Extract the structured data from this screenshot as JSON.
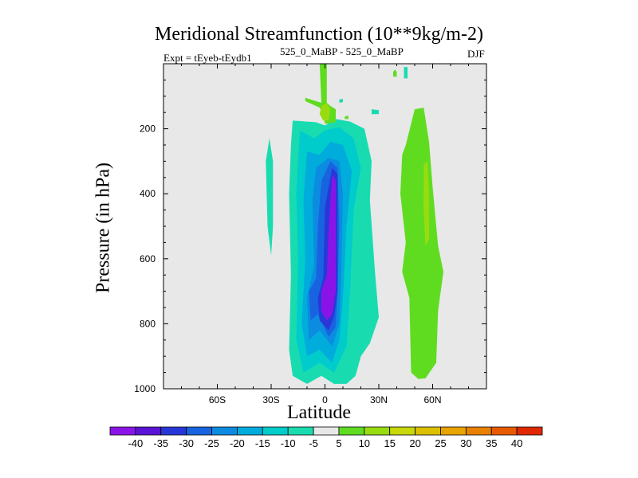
{
  "title": "Meridional Streamfunction (10**9kg/m-2)",
  "experiment": "Expt = tEyeb-tEydb1",
  "subtitle": "525_0_MaBP - 525_0_MaBP",
  "season": "DJF",
  "chart_data": {
    "type": "contour",
    "xlabel": "Latitude",
    "ylabel": "Pressure (in hPa)",
    "xlim": [
      -90,
      90
    ],
    "ylim": [
      1000,
      0
    ],
    "x_ticks": [
      "60S",
      "30S",
      "0",
      "30N",
      "60N"
    ],
    "x_tick_values": [
      -60,
      -30,
      0,
      30,
      60
    ],
    "y_ticks": [
      "200",
      "400",
      "600",
      "800",
      "1000"
    ],
    "y_tick_values": [
      200,
      400,
      600,
      800,
      1000
    ],
    "background_color": "#e8e8e8",
    "contour_levels": [
      -40,
      -35,
      -30,
      -25,
      -20,
      -15,
      -10,
      -5,
      5,
      10,
      15,
      20,
      25,
      30,
      35,
      40
    ],
    "colorbar_labels": [
      "-40",
      "-35",
      "-30",
      "-25",
      "-20",
      "-15",
      "-10",
      "-5",
      "5",
      "10",
      "15",
      "20",
      "25",
      "30",
      "35",
      "40"
    ],
    "colorbar_colors": [
      "#8a14e8",
      "#5a14d8",
      "#2838d8",
      "#1864e0",
      "#0c8ce0",
      "#00acdc",
      "#00cccc",
      "#18dcb0",
      "#e8e8e8",
      "#60dc20",
      "#98dc10",
      "#c8d808",
      "#dcc000",
      "#e8a400",
      "#e88000",
      "#e85a00",
      "#e02800"
    ],
    "regions": [
      {
        "label": "-10",
        "color": "#18dcb0",
        "points": [
          [
            -18,
            175
          ],
          [
            -5,
            180
          ],
          [
            0,
            190
          ],
          [
            6,
            170
          ],
          [
            14,
            178
          ],
          [
            22,
            200
          ],
          [
            26,
            300
          ],
          [
            25,
            420
          ],
          [
            28,
            650
          ],
          [
            30,
            780
          ],
          [
            25,
            860
          ],
          [
            20,
            900
          ],
          [
            17,
            960
          ],
          [
            12,
            985
          ],
          [
            5,
            985
          ],
          [
            -2,
            960
          ],
          [
            -10,
            985
          ],
          [
            -18,
            960
          ],
          [
            -20,
            880
          ],
          [
            -19,
            650
          ],
          [
            -20,
            400
          ],
          [
            -19,
            250
          ]
        ]
      },
      {
        "label": "-10",
        "color": "#18dcb0",
        "points": [
          [
            -31,
            230
          ],
          [
            -29,
            300
          ],
          [
            -29,
            500
          ],
          [
            -30,
            590
          ],
          [
            -32,
            500
          ],
          [
            -33,
            300
          ]
        ]
      },
      {
        "label": "-10",
        "color": "#18dcb0",
        "points": [
          [
            8,
            110
          ],
          [
            10,
            108
          ],
          [
            10,
            118
          ],
          [
            8,
            120
          ]
        ]
      },
      {
        "label": "-10",
        "color": "#18dcb0",
        "points": [
          [
            26,
            140
          ],
          [
            30,
            143
          ],
          [
            30,
            155
          ],
          [
            26,
            155
          ]
        ]
      },
      {
        "label": "-10",
        "color": "#18dcb0",
        "points": [
          [
            44,
            10
          ],
          [
            46,
            10
          ],
          [
            46,
            45
          ],
          [
            44,
            45
          ]
        ]
      },
      {
        "label": "-15",
        "color": "#00cccc",
        "points": [
          [
            -14,
            205
          ],
          [
            -6,
            230
          ],
          [
            0,
            205
          ],
          [
            8,
            195
          ],
          [
            16,
            230
          ],
          [
            20,
            320
          ],
          [
            16,
            450
          ],
          [
            14,
            700
          ],
          [
            12,
            870
          ],
          [
            5,
            950
          ],
          [
            -3,
            920
          ],
          [
            -12,
            950
          ],
          [
            -16,
            850
          ],
          [
            -15,
            600
          ],
          [
            -16,
            400
          ],
          [
            -15,
            300
          ]
        ]
      },
      {
        "label": "-20",
        "color": "#00acdc",
        "points": [
          [
            -10,
            270
          ],
          [
            -3,
            280
          ],
          [
            3,
            240
          ],
          [
            10,
            250
          ],
          [
            15,
            330
          ],
          [
            12,
            500
          ],
          [
            10,
            720
          ],
          [
            8,
            850
          ],
          [
            4,
            920
          ],
          [
            -3,
            880
          ],
          [
            -10,
            900
          ],
          [
            -13,
            800
          ],
          [
            -11,
            600
          ],
          [
            -12,
            420
          ]
        ]
      },
      {
        "label": "-25",
        "color": "#0c8ce0",
        "points": [
          [
            -5,
            320
          ],
          [
            2,
            290
          ],
          [
            8,
            300
          ],
          [
            10,
            400
          ],
          [
            9,
            650
          ],
          [
            8,
            800
          ],
          [
            4,
            870
          ],
          [
            -3,
            820
          ],
          [
            -9,
            850
          ],
          [
            -10,
            720
          ],
          [
            -6,
            620
          ],
          [
            -7,
            420
          ]
        ]
      },
      {
        "label": "-30",
        "color": "#1864e0",
        "points": [
          [
            -2,
            360
          ],
          [
            3,
            300
          ],
          [
            7,
            320
          ],
          [
            8,
            500
          ],
          [
            7,
            700
          ],
          [
            6,
            810
          ],
          [
            2,
            840
          ],
          [
            -4,
            770
          ],
          [
            -8,
            790
          ],
          [
            -9,
            700
          ],
          [
            -5,
            660
          ],
          [
            -4,
            500
          ]
        ]
      },
      {
        "label": "-35",
        "color": "#2838d8",
        "points": [
          [
            0,
            440
          ],
          [
            4,
            320
          ],
          [
            7,
            340
          ],
          [
            7,
            700
          ],
          [
            5,
            780
          ],
          [
            2,
            820
          ],
          [
            -3,
            790
          ],
          [
            -4,
            720
          ],
          [
            -1,
            660
          ]
        ]
      },
      {
        "label": "-40",
        "color": "#8a14e8",
        "points": [
          [
            2,
            520
          ],
          [
            4,
            340
          ],
          [
            6,
            360
          ],
          [
            6,
            700
          ],
          [
            4,
            770
          ],
          [
            1,
            790
          ],
          [
            -2,
            760
          ],
          [
            -2,
            700
          ],
          [
            1,
            650
          ]
        ]
      },
      {
        "label": "5",
        "color": "#60dc20",
        "points": [
          [
            -3,
            0
          ],
          [
            -2,
            120
          ],
          [
            -11,
            105
          ],
          [
            -11,
            115
          ],
          [
            -3,
            135
          ],
          [
            -1,
            155
          ],
          [
            0,
            185
          ],
          [
            6,
            180
          ],
          [
            6,
            140
          ],
          [
            3,
            130
          ],
          [
            1,
            120
          ],
          [
            1,
            0
          ]
        ]
      },
      {
        "label": "5",
        "color": "#60dc20",
        "points": [
          [
            50,
            140
          ],
          [
            55,
            135
          ],
          [
            58,
            240
          ],
          [
            60,
            380
          ],
          [
            63,
            560
          ],
          [
            66,
            640
          ],
          [
            63,
            760
          ],
          [
            62,
            920
          ],
          [
            56,
            968
          ],
          [
            52,
            970
          ],
          [
            48,
            950
          ],
          [
            47,
            720
          ],
          [
            43,
            640
          ],
          [
            45,
            550
          ],
          [
            42,
            400
          ],
          [
            43,
            280
          ],
          [
            45,
            250
          ]
        ]
      },
      {
        "label": "5",
        "color": "#60dc20",
        "points": [
          [
            38,
            25
          ],
          [
            39,
            18
          ],
          [
            40,
            25
          ],
          [
            40,
            40
          ],
          [
            38,
            40
          ]
        ]
      },
      {
        "label": "5",
        "color": "#60dc20",
        "points": [
          [
            11,
            162
          ],
          [
            13,
            160
          ],
          [
            13,
            170
          ],
          [
            11,
            170
          ]
        ]
      },
      {
        "label": "10",
        "color": "#98dc10",
        "points": [
          [
            -2,
            130
          ],
          [
            1,
            120
          ],
          [
            3,
            140
          ],
          [
            2,
            175
          ],
          [
            -1,
            175
          ],
          [
            -3,
            155
          ]
        ]
      },
      {
        "label": "10",
        "color": "#98dc10",
        "points": [
          [
            55,
            310
          ],
          [
            57,
            300
          ],
          [
            58,
            400
          ],
          [
            58,
            540
          ],
          [
            56,
            560
          ],
          [
            55,
            450
          ]
        ]
      }
    ]
  }
}
